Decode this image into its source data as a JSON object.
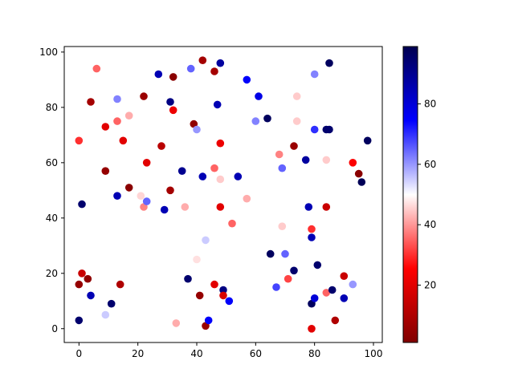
{
  "chart_data": {
    "type": "scatter",
    "title": "",
    "xlabel": "",
    "ylabel": "",
    "xlim": [
      -5,
      103
    ],
    "ylim": [
      -5,
      102
    ],
    "xticks": [
      0,
      20,
      40,
      60,
      80,
      100
    ],
    "yticks": [
      0,
      20,
      40,
      60,
      80,
      100
    ],
    "grid": false,
    "colormap": "seismic_r",
    "colorbar": {
      "range": [
        1,
        99
      ],
      "ticks": [
        20,
        40,
        60,
        80
      ]
    },
    "points": [
      {
        "x": 0,
        "y": 3,
        "c": 95
      },
      {
        "x": 0,
        "y": 16,
        "c": 5
      },
      {
        "x": 0,
        "y": 68,
        "c": 30
      },
      {
        "x": 1,
        "y": 45,
        "c": 95
      },
      {
        "x": 1,
        "y": 20,
        "c": 15
      },
      {
        "x": 3,
        "y": 18,
        "c": 4
      },
      {
        "x": 4,
        "y": 12,
        "c": 85
      },
      {
        "x": 4,
        "y": 82,
        "c": 8
      },
      {
        "x": 6,
        "y": 94,
        "c": 35
      },
      {
        "x": 9,
        "y": 73,
        "c": 20
      },
      {
        "x": 9,
        "y": 57,
        "c": 5
      },
      {
        "x": 9,
        "y": 5,
        "c": 55
      },
      {
        "x": 11,
        "y": 9,
        "c": 95
      },
      {
        "x": 13,
        "y": 48,
        "c": 85
      },
      {
        "x": 13,
        "y": 83,
        "c": 62
      },
      {
        "x": 13,
        "y": 75,
        "c": 35
      },
      {
        "x": 14,
        "y": 16,
        "c": 10
      },
      {
        "x": 15,
        "y": 68,
        "c": 20
      },
      {
        "x": 17,
        "y": 77,
        "c": 42
      },
      {
        "x": 17,
        "y": 51,
        "c": 3
      },
      {
        "x": 21,
        "y": 48,
        "c": 46
      },
      {
        "x": 22,
        "y": 44,
        "c": 38
      },
      {
        "x": 22,
        "y": 84,
        "c": 6
      },
      {
        "x": 23,
        "y": 60,
        "c": 20
      },
      {
        "x": 23,
        "y": 46,
        "c": 65
      },
      {
        "x": 27,
        "y": 92,
        "c": 85
      },
      {
        "x": 28,
        "y": 66,
        "c": 12
      },
      {
        "x": 29,
        "y": 43,
        "c": 85
      },
      {
        "x": 31,
        "y": 82,
        "c": 92
      },
      {
        "x": 31,
        "y": 50,
        "c": 8
      },
      {
        "x": 32,
        "y": 91,
        "c": 3
      },
      {
        "x": 32,
        "y": 79,
        "c": 22
      },
      {
        "x": 33,
        "y": 2,
        "c": 42
      },
      {
        "x": 35,
        "y": 57,
        "c": 90
      },
      {
        "x": 36,
        "y": 44,
        "c": 42
      },
      {
        "x": 37,
        "y": 18,
        "c": 95
      },
      {
        "x": 38,
        "y": 94,
        "c": 65
      },
      {
        "x": 39,
        "y": 74,
        "c": 4
      },
      {
        "x": 40,
        "y": 72,
        "c": 60
      },
      {
        "x": 40,
        "y": 25,
        "c": 47
      },
      {
        "x": 41,
        "y": 12,
        "c": 5
      },
      {
        "x": 42,
        "y": 97,
        "c": 8
      },
      {
        "x": 42,
        "y": 55,
        "c": 85
      },
      {
        "x": 43,
        "y": 32,
        "c": 55
      },
      {
        "x": 43,
        "y": 1,
        "c": 6
      },
      {
        "x": 44,
        "y": 3,
        "c": 75
      },
      {
        "x": 46,
        "y": 93,
        "c": 8
      },
      {
        "x": 46,
        "y": 58,
        "c": 35
      },
      {
        "x": 46,
        "y": 16,
        "c": 20
      },
      {
        "x": 47,
        "y": 81,
        "c": 85
      },
      {
        "x": 48,
        "y": 96,
        "c": 88
      },
      {
        "x": 48,
        "y": 67,
        "c": 22
      },
      {
        "x": 48,
        "y": 54,
        "c": 45
      },
      {
        "x": 48,
        "y": 44,
        "c": 20
      },
      {
        "x": 49,
        "y": 14,
        "c": 92
      },
      {
        "x": 49,
        "y": 12,
        "c": 18
      },
      {
        "x": 51,
        "y": 10,
        "c": 75
      },
      {
        "x": 52,
        "y": 38,
        "c": 35
      },
      {
        "x": 54,
        "y": 55,
        "c": 85
      },
      {
        "x": 57,
        "y": 90,
        "c": 75
      },
      {
        "x": 57,
        "y": 47,
        "c": 42
      },
      {
        "x": 60,
        "y": 75,
        "c": 62
      },
      {
        "x": 61,
        "y": 84,
        "c": 78
      },
      {
        "x": 64,
        "y": 76,
        "c": 97
      },
      {
        "x": 65,
        "y": 27,
        "c": 97
      },
      {
        "x": 67,
        "y": 15,
        "c": 68
      },
      {
        "x": 68,
        "y": 63,
        "c": 38
      },
      {
        "x": 69,
        "y": 58,
        "c": 65
      },
      {
        "x": 69,
        "y": 37,
        "c": 45
      },
      {
        "x": 70,
        "y": 27,
        "c": 65
      },
      {
        "x": 71,
        "y": 18,
        "c": 32
      },
      {
        "x": 73,
        "y": 66,
        "c": 6
      },
      {
        "x": 73,
        "y": 21,
        "c": 95
      },
      {
        "x": 74,
        "y": 84,
        "c": 45
      },
      {
        "x": 74,
        "y": 75,
        "c": 45
      },
      {
        "x": 77,
        "y": 61,
        "c": 88
      },
      {
        "x": 78,
        "y": 44,
        "c": 85
      },
      {
        "x": 79,
        "y": 36,
        "c": 30
      },
      {
        "x": 79,
        "y": 33,
        "c": 85
      },
      {
        "x": 79,
        "y": 9,
        "c": 97
      },
      {
        "x": 79,
        "y": 0,
        "c": 20
      },
      {
        "x": 80,
        "y": 92,
        "c": 62
      },
      {
        "x": 80,
        "y": 72,
        "c": 70
      },
      {
        "x": 80,
        "y": 11,
        "c": 80
      },
      {
        "x": 81,
        "y": 23,
        "c": 95
      },
      {
        "x": 84,
        "y": 72,
        "c": 95
      },
      {
        "x": 84,
        "y": 61,
        "c": 45
      },
      {
        "x": 84,
        "y": 44,
        "c": 15
      },
      {
        "x": 84,
        "y": 13,
        "c": 35
      },
      {
        "x": 85,
        "y": 96,
        "c": 97
      },
      {
        "x": 85,
        "y": 72,
        "c": 95
      },
      {
        "x": 86,
        "y": 14,
        "c": 95
      },
      {
        "x": 87,
        "y": 3,
        "c": 10
      },
      {
        "x": 90,
        "y": 19,
        "c": 15
      },
      {
        "x": 90,
        "y": 11,
        "c": 85
      },
      {
        "x": 93,
        "y": 60,
        "c": 25
      },
      {
        "x": 93,
        "y": 16,
        "c": 60
      },
      {
        "x": 95,
        "y": 56,
        "c": 3
      },
      {
        "x": 96,
        "y": 53,
        "c": 98
      },
      {
        "x": 98,
        "y": 68,
        "c": 97
      }
    ]
  }
}
